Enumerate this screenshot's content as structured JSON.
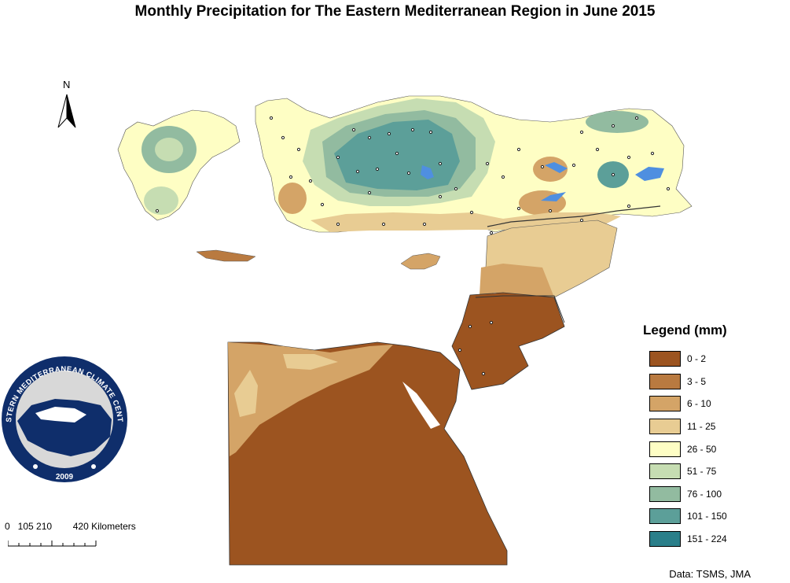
{
  "map": {
    "title": "Monthly Precipitation for The Eastern Mediterranean Region in June 2015",
    "north_label": "N",
    "source": "Data: TSMS, JMA"
  },
  "legend": {
    "title": "Legend (mm)",
    "classes": [
      {
        "label": "0 - 2",
        "color": "#9c5420"
      },
      {
        "label": "3 - 5",
        "color": "#b97a40"
      },
      {
        "label": "6 - 10",
        "color": "#d4a467"
      },
      {
        "label": "11 - 25",
        "color": "#e8cc93"
      },
      {
        "label": "26 - 50",
        "color": "#fefec4"
      },
      {
        "label": "51 - 75",
        "color": "#c6ddb2"
      },
      {
        "label": "76 - 100",
        "color": "#92bba0"
      },
      {
        "label": "101 - 150",
        "color": "#5c9f99"
      },
      {
        "label": "151 - 224",
        "color": "#2a7f8a"
      }
    ]
  },
  "scale": {
    "ticks": "0   105 210        420",
    "unit": "Kilometers"
  },
  "logo": {
    "name": "EASTERN MEDITERRANEAN CLIMATE CENTRE",
    "year": "2009"
  }
}
